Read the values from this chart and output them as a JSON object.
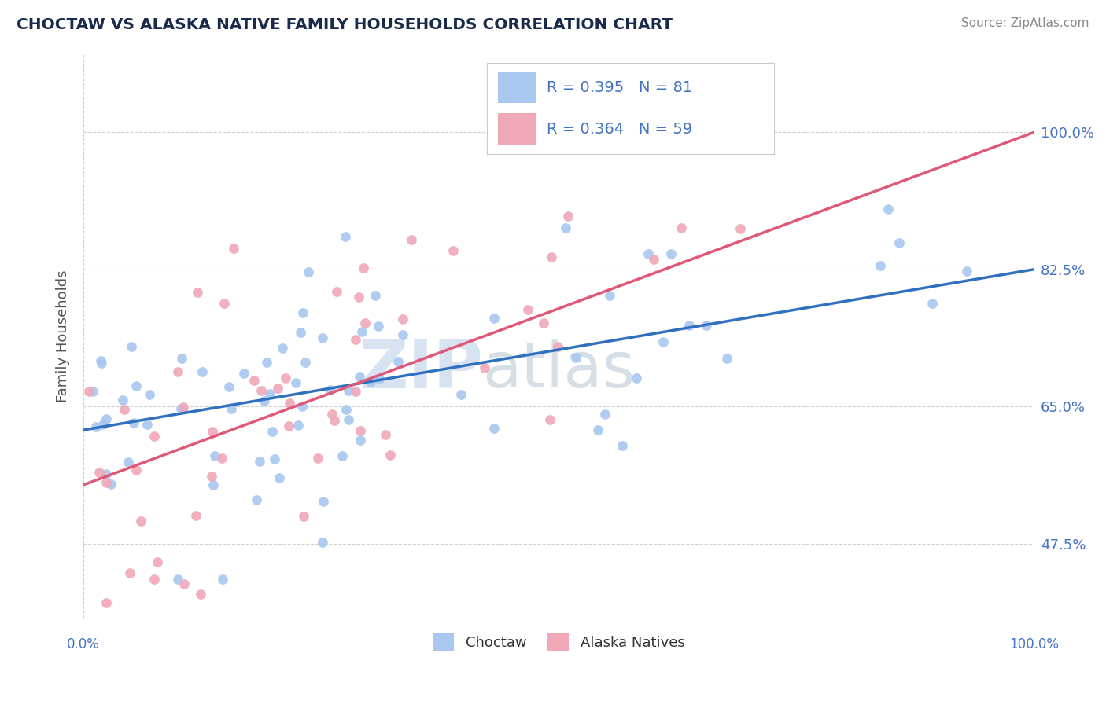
{
  "title": "CHOCTAW VS ALASKA NATIVE FAMILY HOUSEHOLDS CORRELATION CHART",
  "source": "Source: ZipAtlas.com",
  "ylabel": "Family Households",
  "yticks": [
    47.5,
    65.0,
    82.5,
    100.0
  ],
  "xlim": [
    0.0,
    100.0
  ],
  "ylim": [
    38.0,
    110.0
  ],
  "blue_R": 0.395,
  "blue_N": 81,
  "pink_R": 0.364,
  "pink_N": 59,
  "blue_color": "#A8C8F0",
  "pink_color": "#F0A8B8",
  "blue_line_color": "#3070C0",
  "pink_line_color": "#E05878",
  "legend_blue_fill": "#A8C8F0",
  "legend_pink_fill": "#F0A8B8",
  "axis_label_color": "#4472C4",
  "blue_trend_x0": 0.0,
  "blue_trend_y0": 62.0,
  "blue_trend_x1": 100.0,
  "blue_trend_y1": 82.5,
  "pink_trend_x0": 0.0,
  "pink_trend_y0": 55.0,
  "pink_trend_x1": 100.0,
  "pink_trend_y1": 100.0,
  "watermark_zip_color": "#C8D8F0",
  "watermark_atlas_color": "#C0CCD8"
}
